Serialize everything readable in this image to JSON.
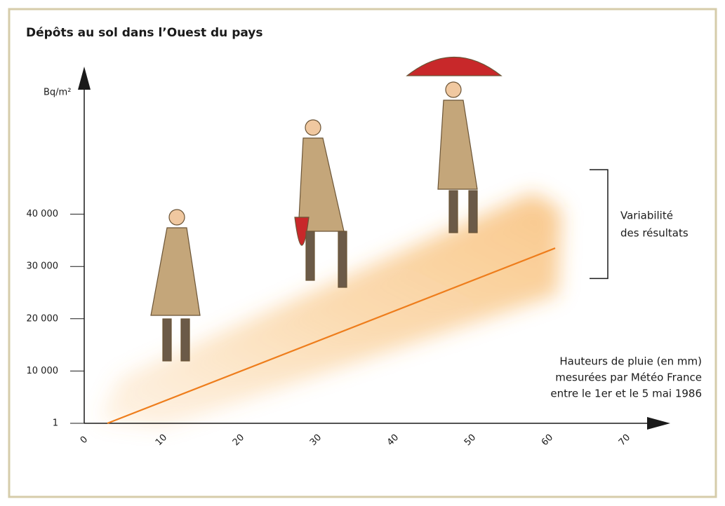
{
  "chart_data": {
    "type": "line",
    "title": "Dépôts au sol dans l’Ouest du pays",
    "ylabel": "Bq/m²",
    "xlabel": [
      "Hauteurs de pluie (en mm)",
      "mesurées par Météo France",
      "entre le 1er et le 5 mai 1986"
    ],
    "annotation": {
      "text": [
        "Variabilité",
        "des résultats"
      ],
      "range": [
        27700,
        48500
      ]
    },
    "x": [
      3,
      61
    ],
    "series": [
      {
        "color": "#ee7d1c",
        "values": [
          1,
          33500
        ]
      }
    ],
    "xlim": [
      0,
      75
    ],
    "xticks": [
      0,
      10,
      20,
      30,
      40,
      50,
      60,
      70
    ],
    "ylim": [
      1,
      63000
    ],
    "yticks": [
      1,
      {
        "value": 10000,
        "label": "10 000"
      },
      {
        "value": 20000,
        "label": "20 000"
      },
      {
        "value": 30000,
        "label": "30 000"
      },
      {
        "value": 40000,
        "label": "40 000"
      }
    ]
  }
}
